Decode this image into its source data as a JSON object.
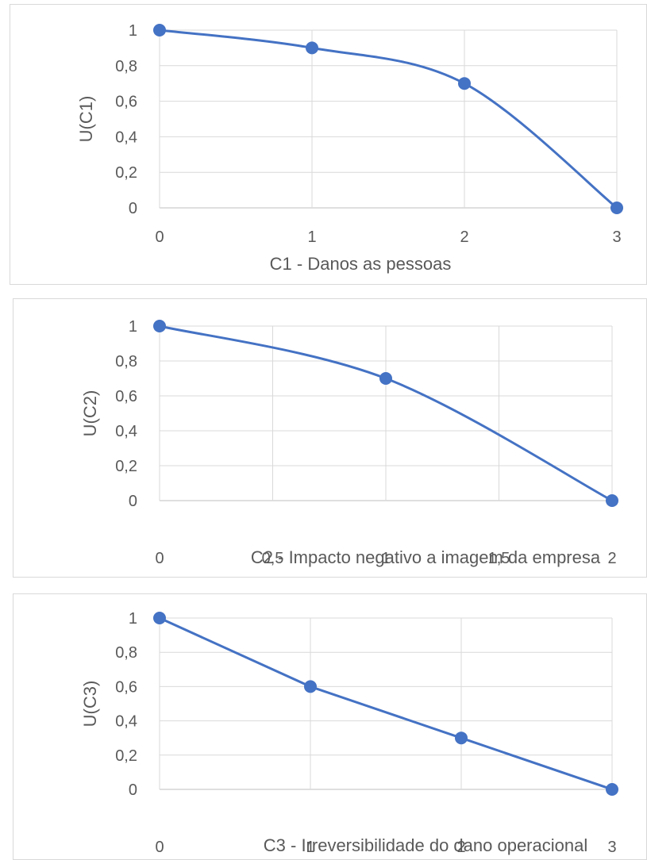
{
  "chart_data": [
    {
      "type": "line",
      "smooth": true,
      "xlabel": "C1 - Danos as pessoas",
      "ylabel": "U(C1)",
      "xlim": [
        0,
        3
      ],
      "ylim": [
        0,
        1
      ],
      "x_ticks": [
        "0",
        "1",
        "2",
        "3"
      ],
      "y_ticks": [
        "0",
        "0,2",
        "0,4",
        "0,6",
        "0,8",
        "1"
      ],
      "grid": true,
      "line_color": "#4472c4",
      "x": [
        0,
        1,
        2,
        3
      ],
      "y": [
        1,
        0.9,
        0.7,
        0
      ]
    },
    {
      "type": "line",
      "smooth": true,
      "xlabel": "C2 - Impacto negativo a imagem da empresa",
      "ylabel": "U(C2)",
      "xlim": [
        0,
        2
      ],
      "ylim": [
        0,
        1
      ],
      "x_ticks": [
        "0",
        "0,5",
        "1",
        "1,5",
        "2"
      ],
      "y_ticks": [
        "0",
        "0,2",
        "0,4",
        "0,6",
        "0,8",
        "1"
      ],
      "grid": true,
      "line_color": "#4472c4",
      "x": [
        0,
        1,
        2
      ],
      "y": [
        1,
        0.7,
        0
      ]
    },
    {
      "type": "line",
      "smooth": false,
      "xlabel": "C3 - Irreversibilidade  do dano operacional",
      "ylabel": "U(C3)",
      "xlim": [
        0,
        3
      ],
      "ylim": [
        0,
        1
      ],
      "x_ticks": [
        "0",
        "1",
        "2",
        "3"
      ],
      "y_ticks": [
        "0",
        "0,2",
        "0,4",
        "0,6",
        "0,8",
        "1"
      ],
      "grid": true,
      "line_color": "#4472c4",
      "x": [
        0,
        1,
        2,
        3
      ],
      "y": [
        1,
        0.6,
        0.3,
        0
      ]
    }
  ]
}
